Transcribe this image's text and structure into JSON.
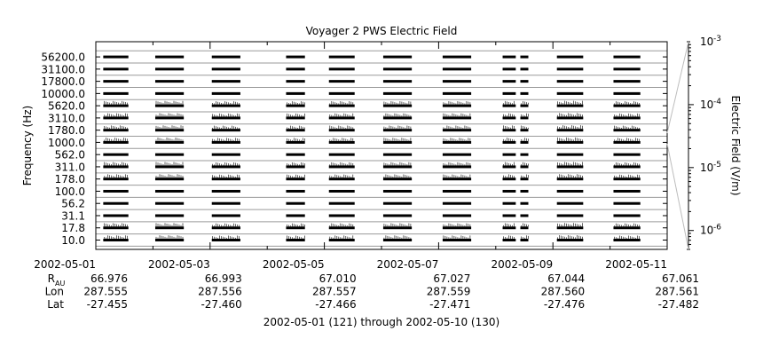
{
  "chart_data": {
    "type": "heatmap",
    "title": "Voyager 2 PWS Electric Field",
    "ylabel": "Frequency (Hz)",
    "colorbar_label": "Electric Field (V/m)",
    "xlabel": "2002-05-01 (121) through 2002-05-10 (130)",
    "x_tick_labels": [
      "2002-05-01",
      "2002-05-03",
      "2002-05-05",
      "2002-05-07",
      "2002-05-09",
      "2002-05-11"
    ],
    "x_range_days": [
      0,
      10
    ],
    "x_ticks_days": [
      0,
      2,
      4,
      6,
      8,
      10
    ],
    "channels_hz": [
      "10.0",
      "17.8",
      "31.1",
      "56.2",
      "100.0",
      "178.0",
      "311.0",
      "562.0",
      "1000.0",
      "1780.0",
      "3110.0",
      "5620.0",
      "10000.0",
      "17800.0",
      "31100.0",
      "56200.0"
    ],
    "colorbar_ticks": [
      {
        "label": "10",
        "exp": "-3",
        "log": -3
      },
      {
        "label": "10",
        "exp": "-4",
        "log": -4
      },
      {
        "label": "10",
        "exp": "-5",
        "log": -5
      },
      {
        "label": "10",
        "exp": "-6",
        "log": -6
      }
    ],
    "colorbar_range_log": [
      -6.3,
      -3
    ],
    "data_intervals_days": [
      [
        0.13,
        0.57
      ],
      [
        1.04,
        1.54
      ],
      [
        2.03,
        2.53
      ],
      [
        3.33,
        3.66
      ],
      [
        4.08,
        4.53
      ],
      [
        5.03,
        5.53
      ],
      [
        6.07,
        6.57
      ],
      [
        7.12,
        7.35
      ],
      [
        7.43,
        7.57
      ],
      [
        8.07,
        8.53
      ],
      [
        9.06,
        9.53
      ]
    ],
    "noisy_channels_hz": [
      "10.0",
      "17.8",
      "178.0",
      "311.0",
      "1000.0",
      "1780.0",
      "3110.0",
      "5620.0"
    ],
    "ephemeris": {
      "row_labels": [
        {
          "main": "R",
          "sub": "AU"
        },
        {
          "main": "Lon",
          "sub": ""
        },
        {
          "main": "Lat",
          "sub": ""
        }
      ],
      "R": [
        "66.976",
        "66.993",
        "67.010",
        "67.027",
        "67.044",
        "67.061"
      ],
      "Lon": [
        "287.555",
        "287.556",
        "287.557",
        "287.559",
        "287.560",
        "287.561"
      ],
      "Lat": [
        "-27.455",
        "-27.460",
        "-27.466",
        "-27.471",
        "-27.476",
        "-27.482"
      ]
    }
  }
}
